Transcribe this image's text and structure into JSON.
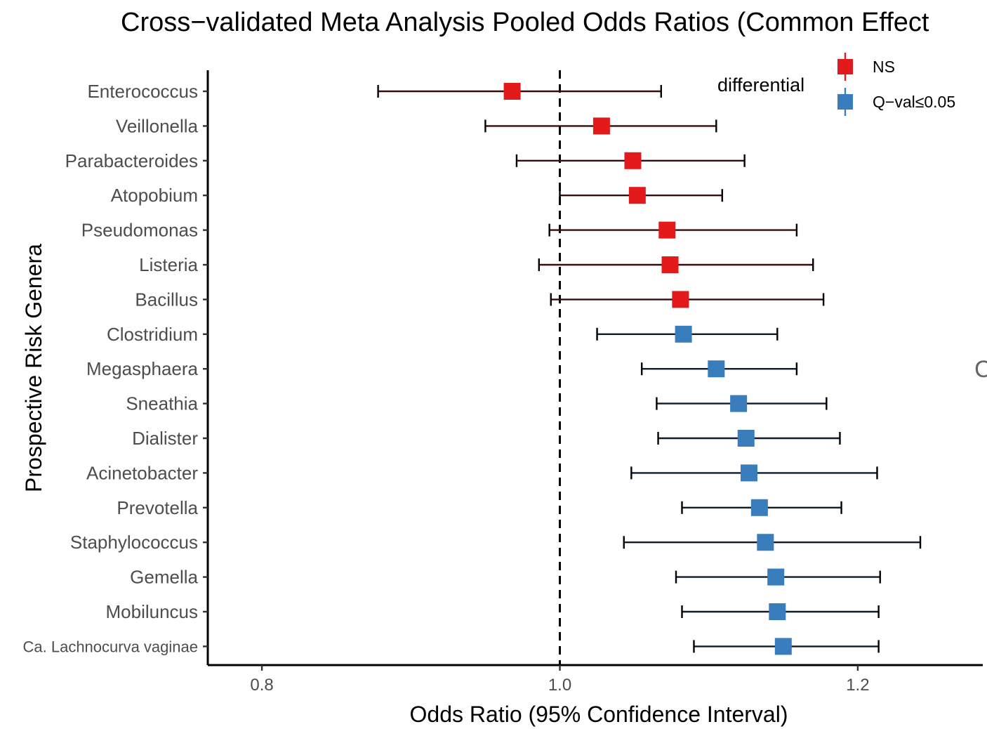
{
  "chart_data": {
    "type": "forest",
    "title": "Cross−validated Meta Analysis Pooled Odds Ratios (Common Effect",
    "xlabel": "Odds Ratio (95% Confidence Interval)",
    "ylabel": "Prospective Risk Genera",
    "xlim": [
      0.76,
      1.285
    ],
    "reference_line": 1.0,
    "xticks": [
      {
        "value": 0.8,
        "label": "0.8"
      },
      {
        "value": 1.0,
        "label": "1.0"
      },
      {
        "value": 1.2,
        "label": "1.2"
      }
    ],
    "legend": {
      "title": "differential",
      "entries": [
        {
          "key": "NS",
          "label": "NS",
          "color": "#e31a1c"
        },
        {
          "key": "Q",
          "label": "Q−val≤0.05",
          "color": "#3a7dbd"
        }
      ]
    },
    "rows": [
      {
        "genus": "Enterococcus",
        "or": 0.968,
        "lower": 0.878,
        "upper": 1.068,
        "group": "NS"
      },
      {
        "genus": "Veillonella",
        "or": 1.028,
        "lower": 0.95,
        "upper": 1.105,
        "group": "NS"
      },
      {
        "genus": "Parabacteroides",
        "or": 1.049,
        "lower": 0.971,
        "upper": 1.124,
        "group": "NS"
      },
      {
        "genus": "Atopobium",
        "or": 1.052,
        "lower": 1.0,
        "upper": 1.109,
        "group": "NS"
      },
      {
        "genus": "Pseudomonas",
        "or": 1.072,
        "lower": 0.993,
        "upper": 1.159,
        "group": "NS"
      },
      {
        "genus": "Listeria",
        "or": 1.074,
        "lower": 0.986,
        "upper": 1.17,
        "group": "NS"
      },
      {
        "genus": "Bacillus",
        "or": 1.081,
        "lower": 0.994,
        "upper": 1.177,
        "group": "NS"
      },
      {
        "genus": "Clostridium",
        "or": 1.083,
        "lower": 1.025,
        "upper": 1.146,
        "group": "Q"
      },
      {
        "genus": "Megasphaera",
        "or": 1.105,
        "lower": 1.055,
        "upper": 1.159,
        "group": "Q"
      },
      {
        "genus": "Sneathia",
        "or": 1.12,
        "lower": 1.065,
        "upper": 1.179,
        "group": "Q"
      },
      {
        "genus": "Dialister",
        "or": 1.125,
        "lower": 1.066,
        "upper": 1.188,
        "group": "Q"
      },
      {
        "genus": "Acinetobacter",
        "or": 1.127,
        "lower": 1.048,
        "upper": 1.213,
        "group": "Q"
      },
      {
        "genus": "Prevotella",
        "or": 1.134,
        "lower": 1.082,
        "upper": 1.189,
        "group": "Q"
      },
      {
        "genus": "Staphylococcus",
        "or": 1.138,
        "lower": 1.043,
        "upper": 1.242,
        "group": "Q"
      },
      {
        "genus": "Gemella",
        "or": 1.145,
        "lower": 1.078,
        "upper": 1.215,
        "group": "Q"
      },
      {
        "genus": "Mobiluncus",
        "or": 1.146,
        "lower": 1.082,
        "upper": 1.214,
        "group": "Q"
      },
      {
        "genus": "Ca. Lachnocurva vaginae",
        "or": 1.15,
        "lower": 1.09,
        "upper": 1.214,
        "group": "Q"
      }
    ]
  },
  "stray_glyph": "C"
}
